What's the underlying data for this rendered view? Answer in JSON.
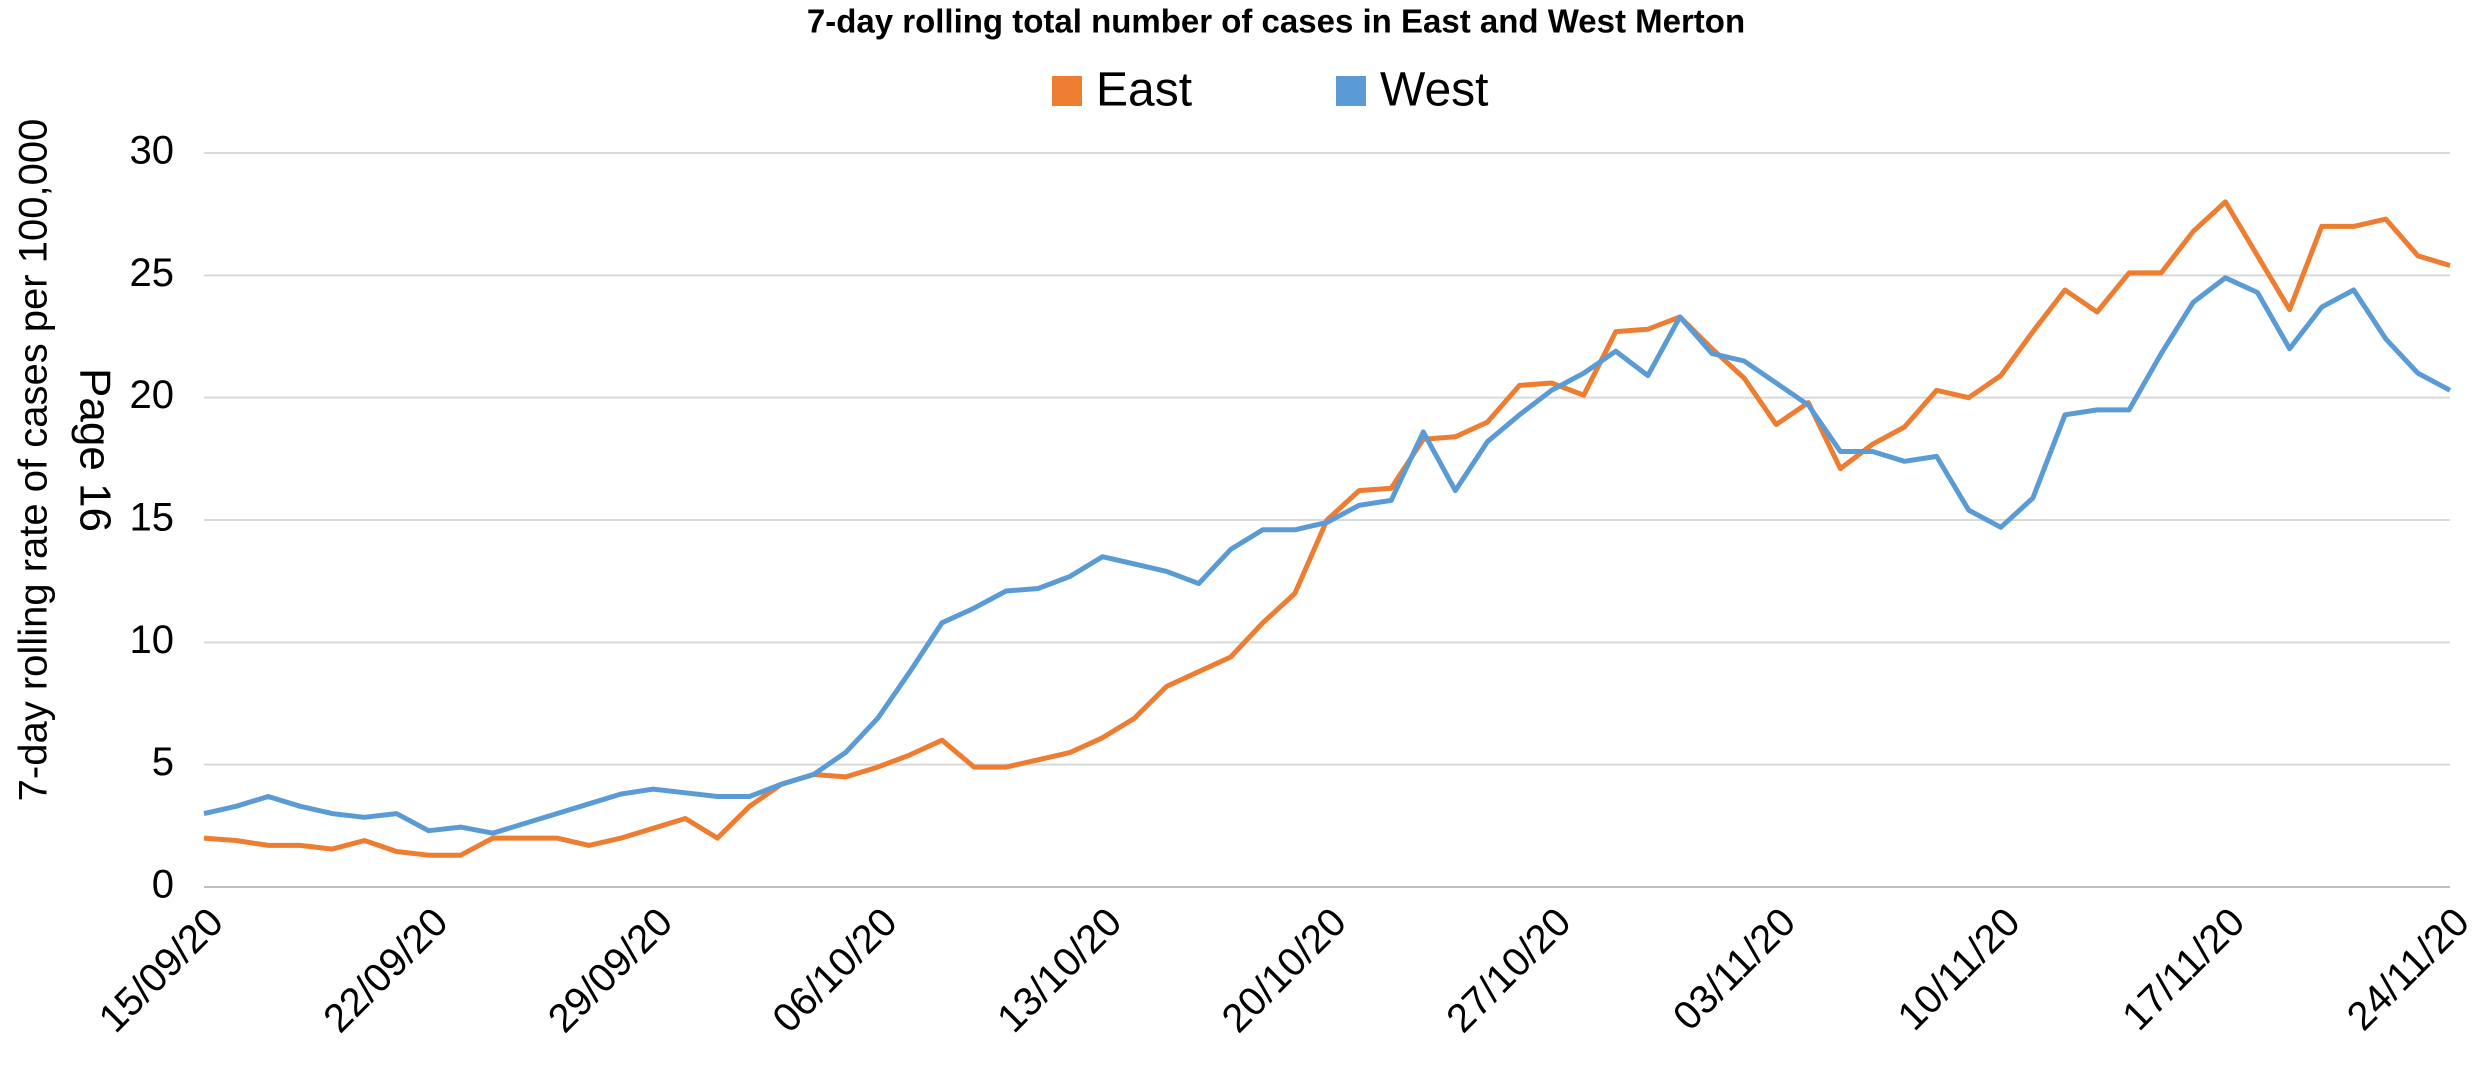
{
  "chart_data": {
    "type": "line",
    "title": "7-day rolling total number of cases in East and West Merton",
    "y_label": "7-day rolling rate of cases per 100,000",
    "annotation": "Page 16",
    "categories": [
      "15/09/20",
      null,
      null,
      null,
      null,
      null,
      null,
      "22/09/20",
      null,
      null,
      null,
      null,
      null,
      null,
      "29/09/20",
      null,
      null,
      null,
      null,
      null,
      null,
      "06/10/20",
      null,
      null,
      null,
      null,
      null,
      null,
      "13/10/20",
      null,
      null,
      null,
      null,
      null,
      null,
      "20/10/20",
      null,
      null,
      null,
      null,
      null,
      null,
      "27/10/20",
      null,
      null,
      null,
      null,
      null,
      null,
      "03/11/20",
      null,
      null,
      null,
      null,
      null,
      null,
      "10/11/20",
      null,
      null,
      null,
      null,
      null,
      null,
      "17/11/20",
      null,
      null,
      null,
      null,
      null,
      null,
      "24/11/20"
    ],
    "series": [
      {
        "name": "East",
        "color": "#ed7d31",
        "values": [
          2.0,
          1.9,
          1.7,
          1.7,
          1.55,
          1.9,
          1.45,
          1.3,
          1.3,
          2.0,
          2.0,
          2.0,
          1.7,
          2.0,
          2.4,
          2.8,
          2.0,
          3.3,
          4.2,
          4.6,
          4.5,
          4.9,
          5.4,
          6.0,
          4.9,
          4.9,
          5.2,
          5.5,
          6.1,
          6.9,
          8.2,
          8.8,
          9.4,
          10.8,
          12.0,
          15.0,
          16.2,
          16.3,
          18.3,
          18.4,
          19.0,
          20.5,
          20.6,
          20.1,
          22.7,
          22.8,
          23.3,
          22.0,
          20.8,
          18.9,
          19.8,
          17.1,
          18.1,
          18.8,
          20.3,
          20.0,
          20.9,
          22.7,
          24.4,
          23.5,
          25.1,
          25.1,
          26.8,
          28.0,
          25.8,
          23.6,
          27.0,
          27.0,
          27.3,
          25.8,
          25.4
        ]
      },
      {
        "name": "West",
        "color": "#5b9bd5",
        "values": [
          3.0,
          3.3,
          3.7,
          3.3,
          3.0,
          2.85,
          3.0,
          2.3,
          2.45,
          2.2,
          2.6,
          3.0,
          3.4,
          3.8,
          4.0,
          3.85,
          3.7,
          3.7,
          4.2,
          4.6,
          5.5,
          6.9,
          8.8,
          10.8,
          11.4,
          12.1,
          12.2,
          12.7,
          13.5,
          13.2,
          12.9,
          12.4,
          13.8,
          14.6,
          14.6,
          14.9,
          15.6,
          15.8,
          18.6,
          16.2,
          18.2,
          19.3,
          20.3,
          21.0,
          21.9,
          20.9,
          23.3,
          21.8,
          21.5,
          20.6,
          19.7,
          17.8,
          17.8,
          17.4,
          17.6,
          15.4,
          14.7,
          15.9,
          19.3,
          19.5,
          19.5,
          21.8,
          23.9,
          24.9,
          24.3,
          22.0,
          23.7,
          24.4,
          22.4,
          21.0,
          20.3
        ]
      }
    ],
    "ylim": [
      0,
      30
    ],
    "yticks": [
      0,
      5,
      10,
      15,
      20,
      25,
      30
    ],
    "grid": true,
    "legend": "top"
  }
}
